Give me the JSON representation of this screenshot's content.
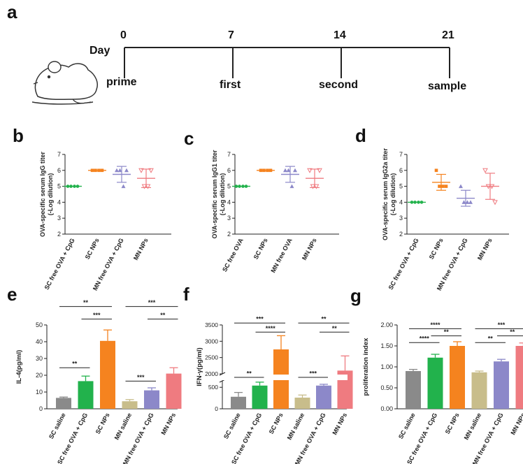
{
  "panel_labels": [
    "a",
    "b",
    "c",
    "d",
    "e",
    "f",
    "g"
  ],
  "timeline": {
    "day_label": "Day",
    "days": [
      "0",
      "7",
      "14",
      "21"
    ],
    "events": [
      "prime",
      "first",
      "second",
      "sample"
    ]
  },
  "colors": {
    "green": "#22b24c",
    "orange": "#f5831f",
    "purple": "#8c88c9",
    "pink": "#ef7b80",
    "gray": "#8a8a8a",
    "khaki": "#c8bd8b"
  },
  "chart_data": [
    {
      "id": "b",
      "type": "scatter",
      "ylabel": [
        "OVA-specific serum IgG titer",
        "(-Log dilution)"
      ],
      "ylim": [
        2,
        7
      ],
      "yticks": [
        "2",
        "3",
        "4",
        "5",
        "6",
        "7"
      ],
      "categories": [
        "SC free OVA + CpG",
        "SC NPs",
        "MN free OVA + CpG",
        "MN NPs"
      ],
      "series": [
        {
          "name": "SC free OVA + CpG",
          "color": "#22b24c",
          "marker": "circle",
          "points": [
            5,
            5,
            5,
            5
          ],
          "mean": 5,
          "sd": 0
        },
        {
          "name": "SC NPs",
          "color": "#f5831f",
          "marker": "square",
          "points": [
            6,
            6,
            6,
            6
          ],
          "mean": 6,
          "sd": 0
        },
        {
          "name": "MN free OVA + CpG",
          "color": "#8c88c9",
          "marker": "triangle",
          "points": [
            6,
            6,
            5,
            6
          ],
          "mean": 5.75,
          "sd": 0.5
        },
        {
          "name": "MN NPs",
          "color": "#ef7b80",
          "marker": "triangle-down",
          "points": [
            6,
            5,
            5,
            6
          ],
          "mean": 5.5,
          "sd": 0.58
        }
      ]
    },
    {
      "id": "c",
      "type": "scatter",
      "ylabel": [
        "OVA-specific serum IgG1 titer",
        "(-Log dilution)"
      ],
      "ylim": [
        2,
        7
      ],
      "yticks": [
        "2",
        "3",
        "4",
        "5",
        "6",
        "7"
      ],
      "categories": [
        "SC free OVA",
        "SC NPs",
        "MN free OVA",
        "MN NPs"
      ],
      "series": [
        {
          "name": "SC free OVA",
          "color": "#22b24c",
          "marker": "circle",
          "points": [
            5,
            5,
            5,
            5
          ],
          "mean": 5,
          "sd": 0
        },
        {
          "name": "SC NPs",
          "color": "#f5831f",
          "marker": "square",
          "points": [
            6,
            6,
            6,
            6
          ],
          "mean": 6,
          "sd": 0
        },
        {
          "name": "MN free OVA",
          "color": "#8c88c9",
          "marker": "triangle",
          "points": [
            6,
            6,
            5,
            6
          ],
          "mean": 5.75,
          "sd": 0.5
        },
        {
          "name": "MN NPs",
          "color": "#ef7b80",
          "marker": "triangle-down",
          "points": [
            6,
            5,
            5,
            6
          ],
          "mean": 5.5,
          "sd": 0.58
        }
      ]
    },
    {
      "id": "d",
      "type": "scatter",
      "ylabel": [
        "OVA-specific serum IgG2a titer",
        "(-Log dilution)"
      ],
      "ylim": [
        2,
        7
      ],
      "yticks": [
        "2",
        "3",
        "4",
        "5",
        "6",
        "7"
      ],
      "categories": [
        "SC free OVA + CpG",
        "SC NPs",
        "MN free OVA + CpG",
        "MN NPs"
      ],
      "series": [
        {
          "name": "SC free OVA + CpG",
          "color": "#22b24c",
          "marker": "circle",
          "points": [
            4,
            4,
            4,
            4
          ],
          "mean": 4,
          "sd": 0
        },
        {
          "name": "SC NPs",
          "color": "#f5831f",
          "marker": "square",
          "points": [
            6,
            5,
            5,
            5
          ],
          "mean": 5.25,
          "sd": 0.5
        },
        {
          "name": "MN free OVA + CpG",
          "color": "#8c88c9",
          "marker": "triangle",
          "points": [
            5,
            4,
            4,
            4
          ],
          "mean": 4.25,
          "sd": 0.5
        },
        {
          "name": "MN NPs",
          "color": "#ef7b80",
          "marker": "triangle-down",
          "points": [
            6,
            5,
            5,
            4
          ],
          "mean": 5,
          "sd": 0.82
        }
      ]
    },
    {
      "id": "e",
      "type": "bar",
      "ylabel": "IL-4(pg/ml)",
      "ylim": [
        0,
        50
      ],
      "yticks": [
        "0",
        "10",
        "20",
        "30",
        "40",
        "50"
      ],
      "categories": [
        "SC saline",
        "SC free OVA + CpG",
        "SC NPs",
        "MN saline",
        "MN free OVA + CpG",
        "MN NPs"
      ],
      "values": [
        6.5,
        16.5,
        40.5,
        4.5,
        11,
        21
      ],
      "errors": [
        0.5,
        3,
        6.5,
        1,
        1.5,
        3.5
      ],
      "colors": [
        "#8a8a8a",
        "#22b24c",
        "#f5831f",
        "#c8bd8b",
        "#8c88c9",
        "#ef7b80"
      ],
      "significance": [
        {
          "from": 0,
          "to": 1,
          "label": "**",
          "y": 24.5
        },
        {
          "from": 1,
          "to": 2,
          "label": "***",
          "y": 53.5
        },
        {
          "from": 0,
          "to": 2,
          "label": "**",
          "y": 61
        },
        {
          "from": 3,
          "to": 4,
          "label": "***",
          "y": 16.5
        },
        {
          "from": 4,
          "to": 5,
          "label": "**",
          "y": 53.5
        },
        {
          "from": 3,
          "to": 5,
          "label": "***",
          "y": 61
        }
      ]
    },
    {
      "id": "f",
      "type": "bar",
      "ylabel": "IFN-γ(pg/ml)",
      "axis_break": [
        650,
        2000
      ],
      "yticks": [
        "0",
        "500",
        "2000",
        "2500",
        "3000",
        "3500"
      ],
      "categories": [
        "SC saline",
        "SC free OVA + CpG",
        "SC NPs",
        "MN saline",
        "MN free OVA + CpG",
        "MN NPs"
      ],
      "values": [
        280,
        540,
        2750,
        260,
        540,
        2100
      ],
      "errors": [
        100,
        80,
        420,
        60,
        30,
        450
      ],
      "colors": [
        "#8a8a8a",
        "#22b24c",
        "#f5831f",
        "#c8bd8b",
        "#8c88c9",
        "#ef7b80"
      ],
      "significance": [
        {
          "from": 0,
          "to": 1,
          "label": "**",
          "y": 1610
        },
        {
          "from": 1,
          "to": 2,
          "label": "****",
          "y": 3280
        },
        {
          "from": 0,
          "to": 2,
          "label": "***",
          "y": 3560
        },
        {
          "from": 3,
          "to": 4,
          "label": "***",
          "y": 1610
        },
        {
          "from": 4,
          "to": 5,
          "label": "**",
          "y": 3280
        },
        {
          "from": 3,
          "to": 5,
          "label": "**",
          "y": 3560
        }
      ]
    },
    {
      "id": "g",
      "type": "bar",
      "ylabel": "proliferation index",
      "ylim": [
        0,
        2
      ],
      "yticks": [
        "0.00",
        "0.50",
        "1.00",
        "1.50",
        "2.00"
      ],
      "categories": [
        "SC saline",
        "SC free OVA + CpG",
        "SC NPs",
        "MN saline",
        "MN free OVA + CpG",
        "MN NPs"
      ],
      "values": [
        0.9,
        1.22,
        1.5,
        0.87,
        1.13,
        1.5
      ],
      "errors": [
        0.04,
        0.08,
        0.1,
        0.03,
        0.05,
        0.07
      ],
      "colors": [
        "#8a8a8a",
        "#22b24c",
        "#f5831f",
        "#c8bd8b",
        "#8c88c9",
        "#ef7b80"
      ],
      "significance": [
        {
          "from": 0,
          "to": 1,
          "label": "****",
          "y": 1.58
        },
        {
          "from": 1,
          "to": 2,
          "label": "**",
          "y": 1.74
        },
        {
          "from": 0,
          "to": 2,
          "label": "****",
          "y": 1.91
        },
        {
          "from": 3,
          "to": 4,
          "label": "**",
          "y": 1.58
        },
        {
          "from": 4,
          "to": 5,
          "label": "**",
          "y": 1.74
        },
        {
          "from": 3,
          "to": 5,
          "label": "***",
          "y": 1.91
        }
      ]
    }
  ]
}
